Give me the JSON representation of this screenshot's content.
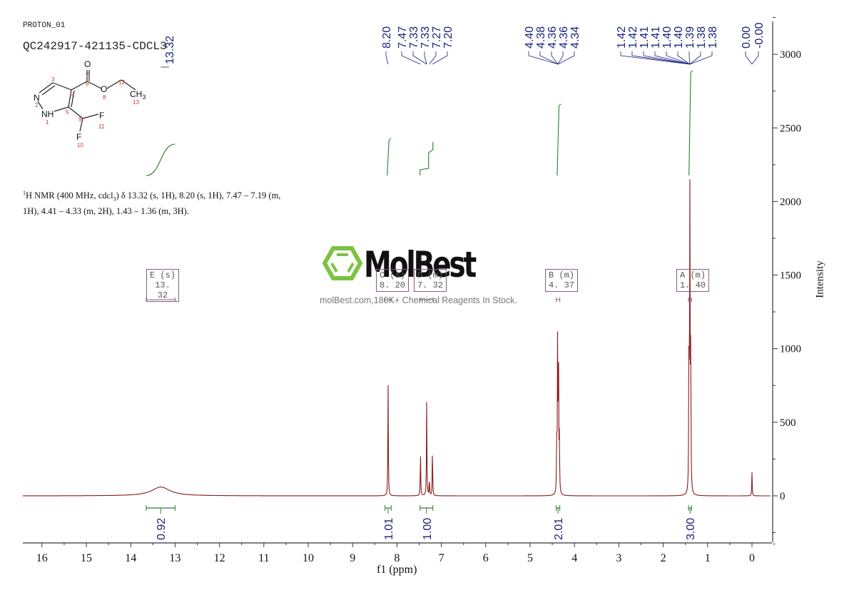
{
  "header": {
    "experiment_name": "PROTON_01",
    "sample_id": "QC242917-421135-CDCL3"
  },
  "structure": {
    "atoms": [
      {
        "label": "O",
        "num": "7"
      },
      {
        "label": "",
        "num": "3"
      },
      {
        "label": "",
        "num": "6"
      },
      {
        "label": "O",
        "num": "8"
      },
      {
        "label": "",
        "num": "12"
      },
      {
        "label": "CH3",
        "num": "13"
      },
      {
        "label": "N",
        "num": "2"
      },
      {
        "label": "",
        "num": "4"
      },
      {
        "label": "NH",
        "num": "1"
      },
      {
        "label": "",
        "num": "5"
      },
      {
        "label": "",
        "num": "9"
      },
      {
        "label": "F",
        "num": "11"
      },
      {
        "label": "F",
        "num": "10"
      }
    ]
  },
  "nmr_description": {
    "prefix_sup": "1",
    "text": "H NMR (400 MHz, cdcl",
    "sub": "3",
    "rest": ") δ 13.32 (s, 1H), 8.20 (s, 1H), 7.47 – 7.19 (m, 1H), 4.41 – 4.33 (m, 2H), 1.43 – 1.36 (m, 3H)."
  },
  "watermark": {
    "brand": "MolBest",
    "tagline": "molBest.com,180K+ Chemical Reagents In Stock."
  },
  "colors": {
    "spectrum": "#8b1a1a",
    "integral": "#2e7d32",
    "peak_label": "#1a237e",
    "multiplet_box": "#8a5a8a",
    "axis": "#333333",
    "logo_green": "#7dc242"
  },
  "chart_data": {
    "type": "line",
    "title": "PROTON_01 QC242917-421135-CDCL3",
    "xlabel": "f1 (ppm)",
    "ylabel": "Intensity",
    "xlim": [
      16.5,
      -0.4
    ],
    "ylim": [
      -300,
      3250
    ],
    "x_reversed": true,
    "x_ticks": [
      "16",
      "15",
      "14",
      "13",
      "12",
      "11",
      "10",
      "9",
      "8",
      "7",
      "6",
      "5",
      "4",
      "3",
      "2",
      "1",
      "0"
    ],
    "y_ticks": [
      "0",
      "500",
      "1000",
      "1500",
      "2000",
      "2500",
      "3000"
    ],
    "grid": false,
    "peak_labels": [
      {
        "group": 1,
        "values": [
          "13.32"
        ]
      },
      {
        "group": 2,
        "values": [
          "8.20",
          "7.47",
          "7.33",
          "7.33",
          "7.27",
          "7.20"
        ]
      },
      {
        "group": 3,
        "values": [
          "4.40",
          "4.38",
          "4.36",
          "4.36",
          "4.34"
        ]
      },
      {
        "group": 4,
        "values": [
          "1.42",
          "1.42",
          "1.41",
          "1.41",
          "1.40",
          "1.40",
          "1.39",
          "1.38",
          "1.38"
        ]
      },
      {
        "group": 5,
        "values": [
          "0.00",
          "-0.00"
        ]
      }
    ],
    "peaks": [
      {
        "ppm": 13.32,
        "intensity": 60,
        "width": 0.5,
        "note": "broad"
      },
      {
        "ppm": 8.2,
        "intensity": 760
      },
      {
        "ppm": 7.47,
        "intensity": 300
      },
      {
        "ppm": 7.33,
        "intensity": 660
      },
      {
        "ppm": 7.27,
        "intensity": 110
      },
      {
        "ppm": 7.2,
        "intensity": 320
      },
      {
        "ppm": 4.4,
        "intensity": 360
      },
      {
        "ppm": 4.38,
        "intensity": 1030
      },
      {
        "ppm": 4.36,
        "intensity": 1010
      },
      {
        "ppm": 4.34,
        "intensity": 350
      },
      {
        "ppm": 1.42,
        "intensity": 1060
      },
      {
        "ppm": 1.4,
        "intensity": 2070
      },
      {
        "ppm": 1.38,
        "intensity": 1010
      },
      {
        "ppm": 0.0,
        "intensity": 160
      }
    ],
    "multiplets": [
      {
        "id": "E",
        "mult": "(s)",
        "shift": "13.32",
        "range": [
          13.65,
          13.0
        ]
      },
      {
        "id": "C",
        "mult": "(s)",
        "shift": "8.20",
        "range": [
          8.27,
          8.13
        ]
      },
      {
        "id": "D",
        "mult": "(m)",
        "shift": "7.32",
        "range": [
          7.48,
          7.19
        ]
      },
      {
        "id": "B",
        "mult": "(m)",
        "shift": "4.37",
        "range": [
          4.41,
          4.33
        ]
      },
      {
        "id": "A",
        "mult": "(m)",
        "shift": "1.40",
        "range": [
          1.43,
          1.36
        ]
      }
    ],
    "integrals": [
      {
        "range": [
          13.65,
          13.0
        ],
        "value": "0.92"
      },
      {
        "range": [
          8.27,
          8.13
        ],
        "value": "1.01"
      },
      {
        "range": [
          7.48,
          7.19
        ],
        "value": "1.00"
      },
      {
        "range": [
          4.41,
          4.33
        ],
        "value": "2.01"
      },
      {
        "range": [
          1.43,
          1.36
        ],
        "value": "3.00"
      }
    ]
  }
}
